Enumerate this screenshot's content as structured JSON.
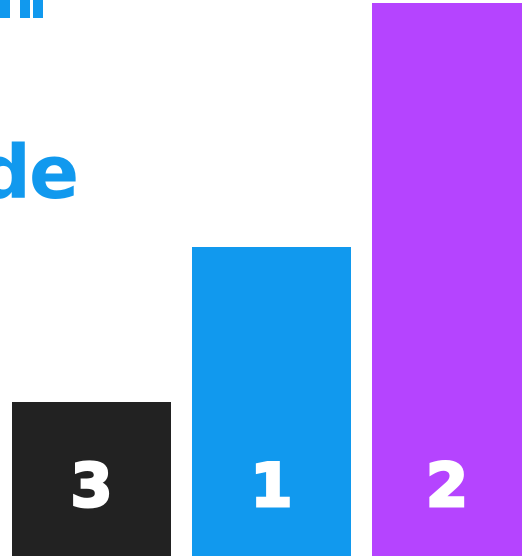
{
  "headline": {
    "visible_fragment": "de"
  },
  "podium": {
    "bars": [
      {
        "rank_label": "3",
        "color": "#222222",
        "level": 0.276
      },
      {
        "rank_label": "1",
        "color": "#1199ee",
        "level": 0.553
      },
      {
        "rank_label": "2",
        "color": "#b544ff",
        "level": 0.989
      }
    ]
  },
  "colors": {
    "background": "#ffffff",
    "accent_blue": "#1199ee",
    "accent_purple": "#b544ff",
    "dark": "#222222",
    "label": "#ffffff"
  }
}
